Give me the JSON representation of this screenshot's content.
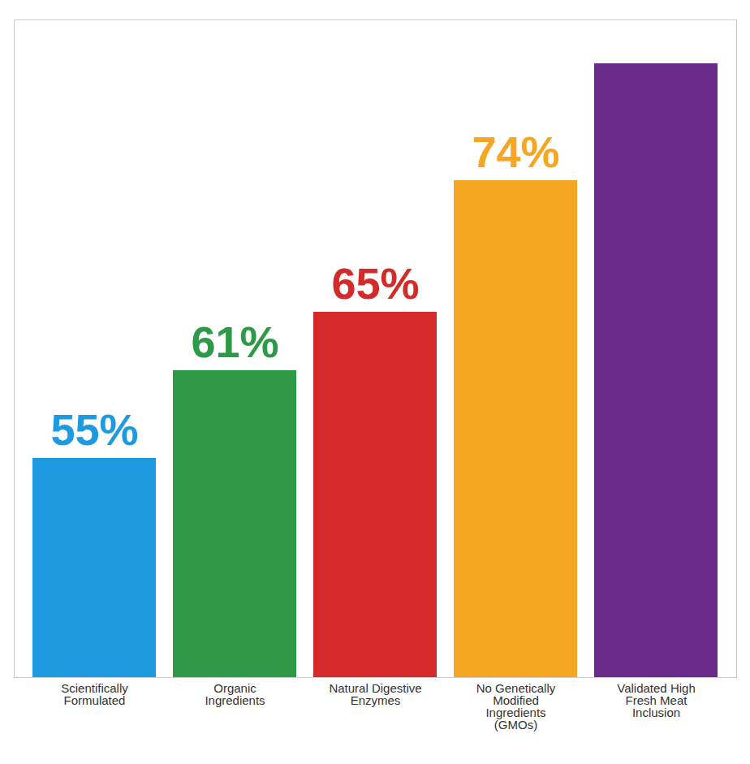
{
  "chart_data": {
    "type": "bar",
    "categories": [
      "Scientifically Formulated",
      "Organic Ingredients",
      "Natural Digestive Enzymes",
      "No Genetically Modified Ingredients (GMOs)",
      "Validated High Fresh Meat Inclusion"
    ],
    "values": [
      55,
      61,
      65,
      74,
      82
    ],
    "value_labels": [
      "55%",
      "61%",
      "65%",
      "74%",
      null
    ],
    "colors": [
      "#1e9be0",
      "#2e9a48",
      "#d42a2a",
      "#f5a623",
      "#6a2a8c"
    ],
    "ylim": [
      40,
      85
    ],
    "data_labels": true,
    "tick_labels": "x"
  }
}
